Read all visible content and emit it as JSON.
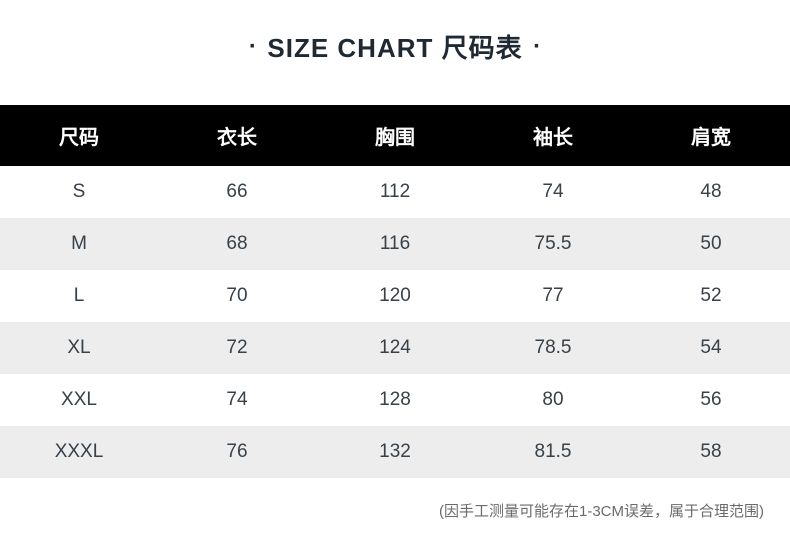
{
  "title": {
    "dot": "·",
    "text": "SIZE CHART 尺码表",
    "fontsize": 26,
    "color": "#1f2933"
  },
  "table": {
    "type": "table",
    "header_bg": "#000000",
    "header_fg": "#ffffff",
    "header_fontsize": 20,
    "body_fontsize": 19,
    "body_fg": "#384048",
    "row_stripe_bg": "#ededed",
    "row_plain_bg": "#ffffff",
    "columns": [
      "尺码",
      "衣长",
      "胸围",
      "袖长",
      "肩宽"
    ],
    "rows": [
      [
        "S",
        "66",
        "112",
        "74",
        "48"
      ],
      [
        "M",
        "68",
        "116",
        "75.5",
        "50"
      ],
      [
        "L",
        "70",
        "120",
        "77",
        "52"
      ],
      [
        "XL",
        "72",
        "124",
        "78.5",
        "54"
      ],
      [
        "XXL",
        "74",
        "128",
        "80",
        "56"
      ],
      [
        "XXXL",
        "76",
        "132",
        "81.5",
        "58"
      ]
    ],
    "stripe_row_indices": [
      1,
      3,
      5
    ]
  },
  "footnote": {
    "text": "(因手工测量可能存在1-3CM误差，属于合理范围)",
    "fontsize": 15,
    "color": "#6b6b6b"
  },
  "background_color": "#ffffff"
}
